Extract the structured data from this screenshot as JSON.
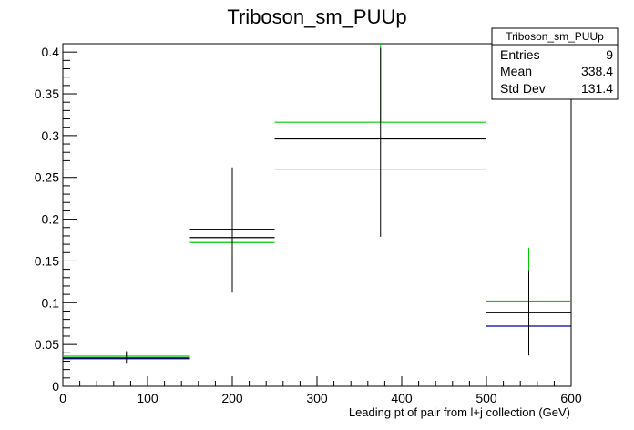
{
  "chart_data": {
    "type": "histogram",
    "title": "Triboson_sm_PUUp",
    "xlabel": "Leading pt of pair from l+j collection (GeV)",
    "ylabel": "",
    "xlim": [
      0,
      600
    ],
    "ylim": [
      0,
      0.41
    ],
    "x_ticks": [
      0,
      100,
      200,
      300,
      400,
      500,
      600
    ],
    "x_tick_labels": [
      "0",
      "100",
      "200",
      "300",
      "400",
      "500",
      "600"
    ],
    "y_ticks": [
      0,
      0.05,
      0.1,
      0.15,
      0.2,
      0.25,
      0.3,
      0.35,
      0.4
    ],
    "y_tick_labels": [
      "0",
      "0.05",
      "0.1",
      "0.15",
      "0.2",
      "0.25",
      "0.3",
      "0.35",
      "0.4"
    ],
    "grid": false,
    "legend": "none",
    "bins": [
      {
        "xlow": 0,
        "xhigh": 150,
        "xcenter": 75
      },
      {
        "xlow": 150,
        "xhigh": 250,
        "xcenter": 200
      },
      {
        "xlow": 250,
        "xhigh": 500,
        "xcenter": 375
      },
      {
        "xlow": 500,
        "xhigh": 600,
        "xcenter": 550
      }
    ],
    "series": [
      {
        "color": "#000000",
        "values": [
          0.034,
          0.178,
          0.296,
          0.088
        ],
        "error_low": [
          0.027,
          0.112,
          0.179,
          0.037
        ],
        "error_high": [
          0.042,
          0.262,
          0.405,
          0.139
        ]
      },
      {
        "color": "#00cc00",
        "values": [
          0.036,
          0.172,
          0.316,
          0.102
        ],
        "error_low": [],
        "error_high": [
          0.041,
          0.0,
          0.41,
          0.166
        ]
      },
      {
        "color": "#000099",
        "values": [
          0.033,
          0.188,
          0.26,
          0.072
        ],
        "error_low": [],
        "error_high": []
      }
    ],
    "stats_box": {
      "title": "Triboson_sm_PUUp",
      "rows": [
        {
          "label": "Entries",
          "value": "9"
        },
        {
          "label": "Mean",
          "value": "338.4"
        },
        {
          "label": "Std Dev",
          "value": "131.4"
        }
      ],
      "placement": "top-right"
    }
  }
}
